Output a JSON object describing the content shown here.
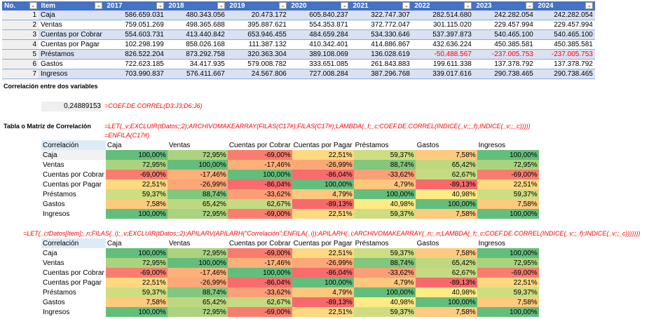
{
  "table": {
    "headers": [
      "No.",
      "Item",
      "2017",
      "2018",
      "2019",
      "2020",
      "2021",
      "2022",
      "2023",
      "2024"
    ],
    "rows": [
      [
        "1",
        "Caja",
        "586.659.031",
        "480.343.056",
        "20.473.172",
        "605.840.237",
        "322.747.307",
        "282.514.680",
        "242.282.054",
        "242.282.054"
      ],
      [
        "2",
        "Ventas",
        "759.051.269",
        "498.365.688",
        "395.887.621",
        "554.353.871",
        "372.772.047",
        "301.115.020",
        "229.457.994",
        "229.457.994"
      ],
      [
        "3",
        "Cuentas por Cobrar",
        "554.603.731",
        "413.440.842",
        "653.946.455",
        "484.659.284",
        "534.330.646",
        "537.397.873",
        "540.465.100",
        "540.465.100"
      ],
      [
        "4",
        "Cuentas por Pagar",
        "102.298.199",
        "858.026.168",
        "111.387.132",
        "410.342.401",
        "414.886.867",
        "432.636.224",
        "450.385.581",
        "450.385.581"
      ],
      [
        "5",
        "Préstamos",
        "826.522.204",
        "873.292.758",
        "320.363.304",
        "389.108.069",
        "136.028.619",
        "-50.488.567",
        "-237.005.753",
        "-237.005.753"
      ],
      [
        "6",
        "Gastos",
        "722.623.185",
        "34.417.935",
        "579.008.782",
        "333.651.085",
        "261.843.883",
        "199.611.338",
        "137.378.792",
        "137.378.792"
      ],
      [
        "7",
        "Ingresos",
        "703.990.837",
        "576.411.667",
        "24.567.806",
        "727.008.284",
        "387.296.768",
        "339.017.616",
        "290.738.465",
        "290.738.465"
      ]
    ]
  },
  "section1_title": "Correlación entre dos variables",
  "correl_value": "0,24889153",
  "correl_formula": "=COEF.DE.CORREL(D3:J3;D6:J6)",
  "section2_title": "Tabla o Matriz de Correlación",
  "matrix_formula1": "=LET(_v;EXCLUIR(tDatos;;2);ARCHIVOMAKEARRAY(FILAS(C17#);FILAS(C17#);LAMBDA(_f;_c;COEF.DE.CORREL(INDICE(_v;;_f);INDICE(_v;;_c)))))",
  "matrix_formula2": "=ENFILA(C17#)",
  "matrix_formula3": "=LET(_i;tDatos[Item];_n;FILAS(_i);_v;EXCLUIR(tDatos;;2);APILARV(APILARH(\"Correlación\";ENFILA(_i));APILARH(_i;ARCHIVOMAKEARRAY(_n;_n;LAMBDA(_f;_c;COEF.DE.CORREL(INDICE(_v;;_f);INDICE(_v;;_c)))))))",
  "matrix": {
    "corner": "Correlación",
    "labels": [
      "Caja",
      "Ventas",
      "Cuentas por Cobrar",
      "Cuentas por Pagar",
      "Préstamos",
      "Gastos",
      "Ingresos"
    ],
    "values": [
      [
        "100,00%",
        "72,95%",
        "-69,00%",
        "22,51%",
        "59,37%",
        "7,58%",
        "100,00%"
      ],
      [
        "72,95%",
        "100,00%",
        "-17,46%",
        "-26,99%",
        "88,74%",
        "65,42%",
        "72,95%"
      ],
      [
        "-69,00%",
        "-17,46%",
        "100,00%",
        "-86,04%",
        "-33,62%",
        "62,67%",
        "-69,00%"
      ],
      [
        "22,51%",
        "-26,99%",
        "-86,04%",
        "100,00%",
        "4,79%",
        "-89,13%",
        "22,51%"
      ],
      [
        "59,37%",
        "88,74%",
        "-33,62%",
        "4,79%",
        "100,00%",
        "40,98%",
        "59,37%"
      ],
      [
        "7,58%",
        "65,42%",
        "62,67%",
        "-89,13%",
        "40,98%",
        "100,00%",
        "7,58%"
      ],
      [
        "100,00%",
        "72,95%",
        "-69,00%",
        "22,51%",
        "59,37%",
        "7,58%",
        "100,00%"
      ]
    ]
  },
  "colors": {
    "header": "#4472c4",
    "low": "#f8696b",
    "mid": "#ffeb84",
    "high": "#63be7b",
    "formula": "#ff0000"
  }
}
